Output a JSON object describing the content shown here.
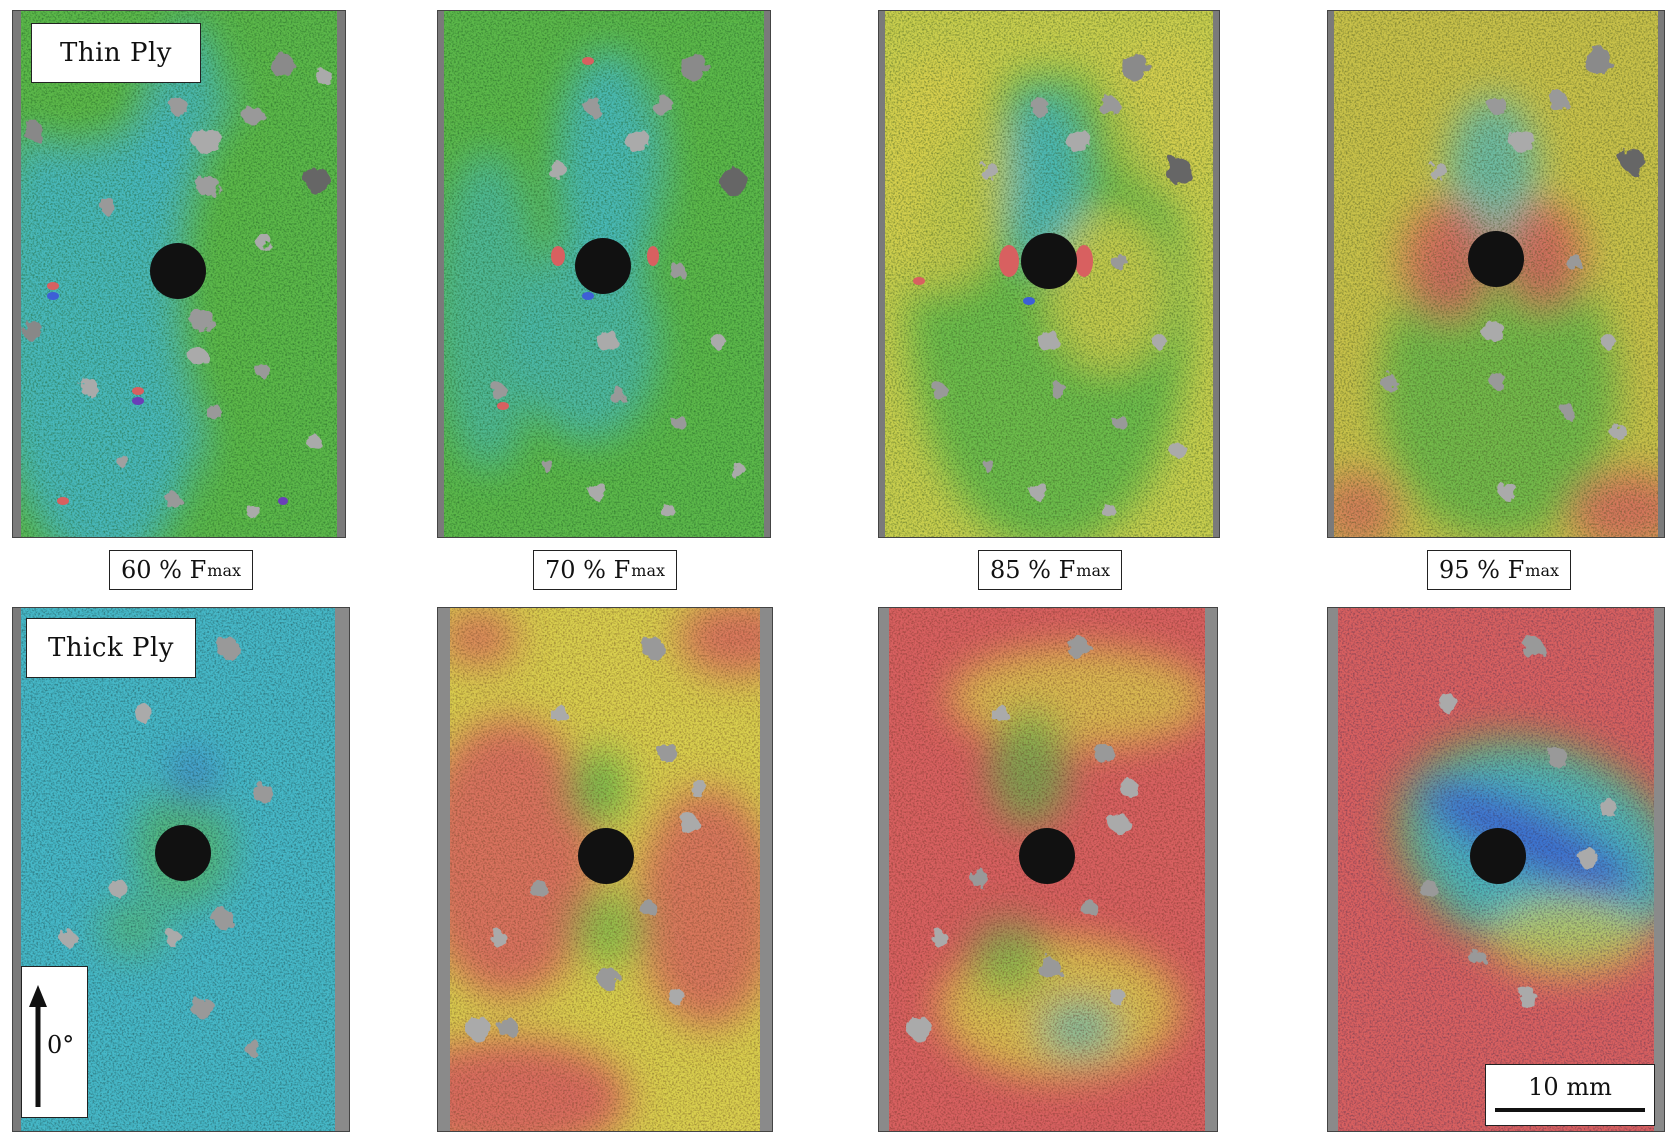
{
  "rows": [
    {
      "label": "Thin Ply"
    },
    {
      "label": "Thick Ply"
    }
  ],
  "captions": [
    {
      "value": "60 %",
      "unit": "F",
      "sub": "max"
    },
    {
      "value": "70 %",
      "unit": "F",
      "sub": "max"
    },
    {
      "value": "85 %",
      "unit": "F",
      "sub": "max"
    },
    {
      "value": "95 %",
      "unit": "F",
      "sub": "max"
    }
  ],
  "orientation": {
    "label": "0°"
  },
  "scale": {
    "label": "10 mm"
  },
  "palette": {
    "blue": "#3d5fd6",
    "cyan": "#46b8c8",
    "green": "#5cb84a",
    "yellow": "#d9cf4e",
    "red": "#d86060",
    "purple": "#6a3fb8"
  }
}
